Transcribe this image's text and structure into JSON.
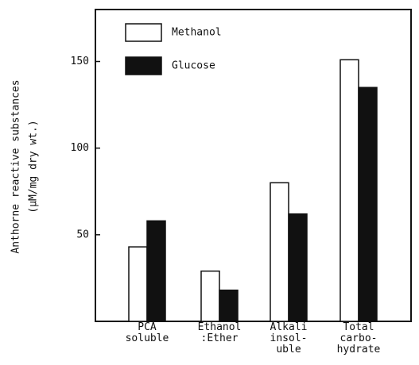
{
  "chart_data": {
    "type": "bar",
    "ylabel": [
      "Anthorne reactive substances",
      "(μM/mg dry wt.)"
    ],
    "categories": [
      "PCA\nsoluble",
      "Ethanol\n:Ether",
      "Alkali\ninsol-\nuble",
      "Total\ncarbo-\nhydrate"
    ],
    "series": [
      {
        "name": "Methanol",
        "color": "#ffffff",
        "values": [
          43,
          29,
          80,
          151
        ]
      },
      {
        "name": "Glucose",
        "color": "#111111",
        "values": [
          58,
          18,
          62,
          135
        ]
      }
    ],
    "ylim": [
      0,
      180
    ],
    "yticks": [
      50,
      100,
      150
    ],
    "grid": false,
    "legend": "top-left"
  }
}
